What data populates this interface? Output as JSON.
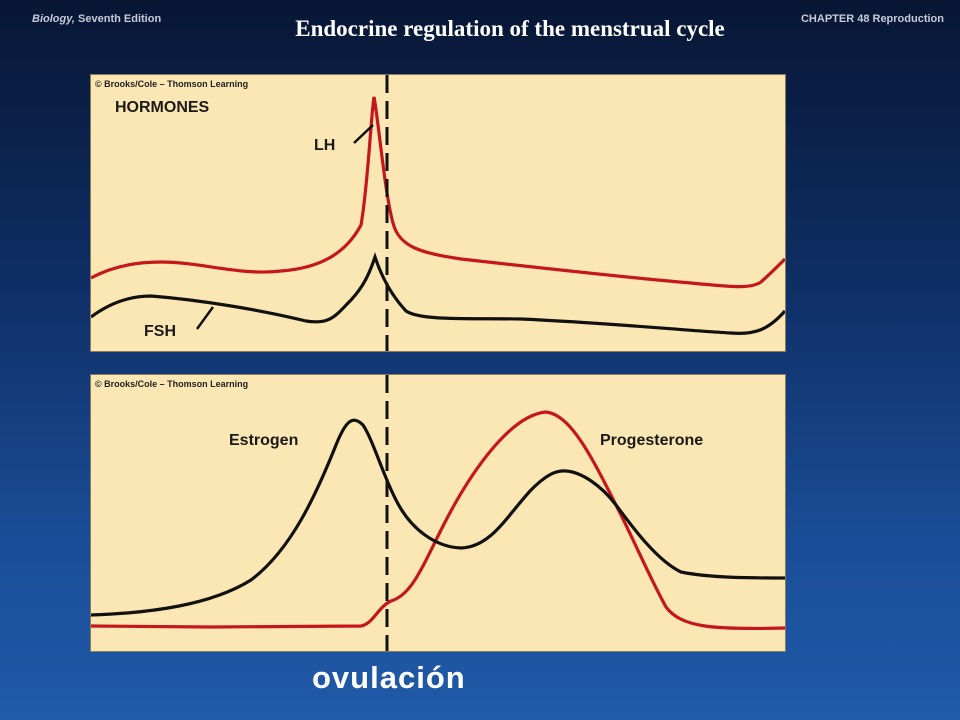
{
  "header": {
    "book_title_italic": "Biology,",
    "book_title_rest": " Seventh Edition",
    "chapter": "CHAPTER 48 Reproduction"
  },
  "slide": {
    "title": "Endocrine regulation of the menstrual cycle",
    "bottom_label": "ovulación"
  },
  "top_panel": {
    "credit": "© Brooks/Cole – Thomson Learning",
    "heading": "HORMONES",
    "lh_label": "LH",
    "fsh_label": "FSH"
  },
  "bottom_panel": {
    "credit": "© Brooks/Cole – Thomson Learning",
    "estrogen_label": "Estrogen",
    "progesterone_label": "Progesterone"
  },
  "colors": {
    "red_curve": "#c4161c",
    "black_curve": "#111111",
    "panel_bg": "#fbe7b3"
  }
}
